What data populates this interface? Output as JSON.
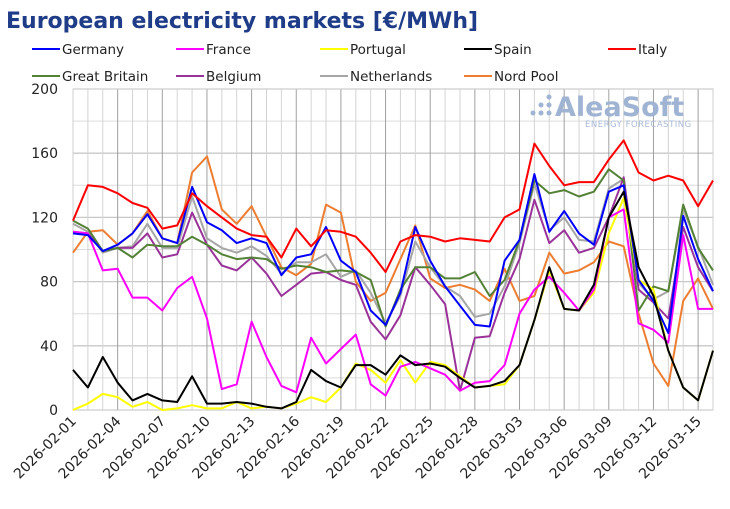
{
  "chart_data": {
    "type": "line",
    "title": "European electricity markets [€/MWh]",
    "xlabel": "",
    "ylabel": "",
    "ylim": [
      0,
      200
    ],
    "yticks": [
      0,
      40,
      80,
      120,
      160,
      200
    ],
    "grid": true,
    "legend_placement": "top",
    "x_start": "2026-02-01",
    "x_end": "2026-03-16",
    "xtick_labels": [
      "2026-02-01",
      "2026-02-04",
      "2026-02-07",
      "2026-02-10",
      "2026-02-13",
      "2026-02-16",
      "2026-02-19",
      "2026-02-22",
      "2026-02-25",
      "2026-02-28",
      "2026-03-03",
      "2026-03-06",
      "2026-03-09",
      "2026-03-12",
      "2026-03-15"
    ],
    "watermark": {
      "brand": "AleaSoft",
      "tagline": "ENERGY FORECASTING"
    },
    "series": [
      {
        "name": "Germany",
        "color": "#0000ff",
        "values": [
          110,
          109,
          99,
          103,
          110,
          122,
          107,
          104,
          139,
          117,
          112,
          104,
          107,
          104,
          84,
          95,
          97,
          114,
          93,
          86,
          62,
          53,
          73,
          114,
          93,
          77,
          65,
          53,
          52,
          93,
          106,
          147,
          111,
          124,
          110,
          103,
          136,
          140,
          81,
          68,
          48,
          121,
          94,
          74
        ]
      },
      {
        "name": "France",
        "color": "#ff00ff",
        "values": [
          111,
          110,
          87,
          88,
          70,
          70,
          62,
          76,
          83,
          57,
          13,
          16,
          55,
          33,
          15,
          11,
          45,
          29,
          38,
          47,
          16,
          9,
          27,
          30,
          26,
          22,
          12,
          17,
          18,
          28,
          60,
          75,
          83,
          73,
          62,
          75,
          120,
          125,
          54,
          50,
          42,
          109,
          63,
          63
        ]
      },
      {
        "name": "Portugal",
        "color": "#ffff00",
        "values": [
          0,
          4,
          10,
          8,
          2,
          5,
          0,
          1,
          3,
          1,
          1,
          5,
          1,
          2,
          1,
          4,
          8,
          5,
          14,
          29,
          25,
          17,
          31,
          17,
          30,
          28,
          21,
          14,
          15,
          16,
          28,
          56,
          87,
          63,
          62,
          73,
          110,
          132,
          81,
          75,
          37,
          14,
          6,
          37
        ]
      },
      {
        "name": "Spain",
        "color": "#000000",
        "values": [
          25,
          14,
          33,
          17,
          6,
          10,
          6,
          5,
          21,
          4,
          4,
          5,
          4,
          2,
          1,
          5,
          25,
          18,
          14,
          28,
          28,
          22,
          34,
          28,
          29,
          27,
          20,
          14,
          15,
          18,
          28,
          56,
          89,
          63,
          62,
          78,
          120,
          136,
          89,
          71,
          37,
          14,
          6,
          37
        ]
      },
      {
        "name": "Italy",
        "color": "#ff0000",
        "values": [
          118,
          140,
          139,
          135,
          129,
          126,
          113,
          115,
          135,
          127,
          120,
          113,
          109,
          108,
          95,
          113,
          102,
          112,
          111,
          108,
          98,
          86,
          105,
          109,
          108,
          105,
          107,
          106,
          105,
          120,
          125,
          166,
          152,
          140,
          142,
          142,
          156,
          168,
          148,
          143,
          146,
          143,
          127,
          143
        ]
      },
      {
        "name": "Great Britain",
        "color": "#538135",
        "values": [
          118,
          113,
          99,
          101,
          95,
          103,
          102,
          102,
          108,
          103,
          97,
          94,
          95,
          94,
          88,
          90,
          89,
          86,
          87,
          86,
          81,
          52,
          75,
          89,
          89,
          82,
          82,
          86,
          71,
          81,
          106,
          143,
          135,
          137,
          133,
          136,
          150,
          143,
          62,
          77,
          74,
          128,
          101,
          87
        ]
      },
      {
        "name": "Belgium",
        "color": "#993399",
        "values": [
          111,
          110,
          99,
          101,
          101,
          110,
          95,
          97,
          123,
          103,
          90,
          87,
          95,
          85,
          71,
          78,
          85,
          86,
          81,
          78,
          55,
          44,
          59,
          89,
          78,
          66,
          12,
          45,
          46,
          73,
          94,
          131,
          104,
          112,
          98,
          101,
          120,
          145,
          75,
          67,
          57,
          114,
          89,
          74
        ]
      },
      {
        "name": "Netherlands",
        "color": "#a6a6a6",
        "values": [
          116,
          111,
          98,
          101,
          102,
          116,
          101,
          101,
          133,
          107,
          101,
          98,
          102,
          96,
          85,
          92,
          92,
          97,
          83,
          87,
          73,
          54,
          71,
          105,
          89,
          77,
          71,
          58,
          60,
          77,
          104,
          141,
          112,
          120,
          106,
          105,
          138,
          144,
          79,
          69,
          74,
          125,
          102,
          78
        ]
      },
      {
        "name": "Nord Pool",
        "color": "#ed7d31",
        "values": [
          98,
          111,
          112,
          103,
          110,
          124,
          107,
          104,
          148,
          158,
          125,
          116,
          127,
          108,
          89,
          84,
          91,
          128,
          123,
          80,
          68,
          73,
          94,
          115,
          82,
          76,
          78,
          75,
          68,
          88,
          68,
          71,
          98,
          85,
          87,
          92,
          105,
          102,
          60,
          29,
          15,
          68,
          82,
          63
        ]
      }
    ]
  }
}
